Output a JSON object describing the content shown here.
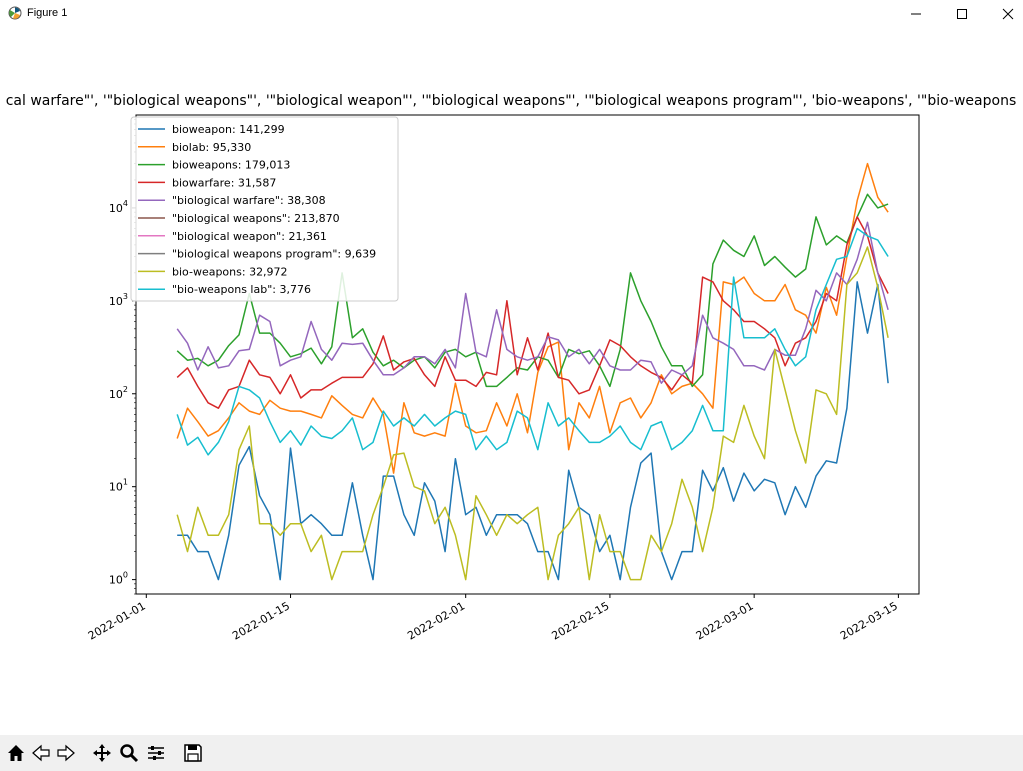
{
  "window": {
    "title": "Figure 1"
  },
  "toolbar": {
    "buttons": [
      {
        "name": "home-button",
        "icon": "home-icon"
      },
      {
        "name": "back-button",
        "icon": "arrow-left-icon"
      },
      {
        "name": "forward-button",
        "icon": "arrow-right-icon"
      },
      {
        "name": "pan-button",
        "icon": "move-icon"
      },
      {
        "name": "zoom-button",
        "icon": "magnifier-icon"
      },
      {
        "name": "configure-button",
        "icon": "sliders-icon"
      },
      {
        "name": "save-button",
        "icon": "floppy-disk-icon"
      }
    ]
  },
  "chart_data": {
    "type": "line",
    "title": "cal warfare\"', '\"biological weapons\"', '\"biological weapon\"', '\"biological weapons\"', '\"biological weapons program\"', 'bio-weapons', '\"bio-weapons",
    "xlabel": "",
    "ylabel": "",
    "y_scale": "log",
    "ylim": [
      0.7,
      100000
    ],
    "xlim": [
      "2021-12-31",
      "2022-03-17"
    ],
    "x_start": "2022-01-04",
    "x_end": "2022-03-13",
    "x_ticks": [
      "2022-01-01",
      "2022-01-15",
      "2022-02-01",
      "2022-02-15",
      "2022-03-01",
      "2022-03-15"
    ],
    "y_ticks": [
      {
        "value": 1,
        "base": "10",
        "exp": "0"
      },
      {
        "value": 10,
        "base": "10",
        "exp": "1"
      },
      {
        "value": 100,
        "base": "10",
        "exp": "2"
      },
      {
        "value": 1000,
        "base": "10",
        "exp": "3"
      },
      {
        "value": 10000,
        "base": "10",
        "exp": "4"
      }
    ],
    "legend_position": "upper-left",
    "grid": false,
    "series": [
      {
        "name": "bioweapon: 141,299",
        "color": "#1f77b4",
        "values": [
          3,
          3,
          2,
          2,
          1,
          3,
          17,
          27,
          8,
          5,
          1,
          26,
          4,
          5,
          4,
          3,
          3,
          11,
          3,
          1,
          13,
          13,
          5,
          3,
          11,
          7,
          2,
          20,
          5,
          6,
          3,
          5,
          5,
          5,
          4,
          2,
          2,
          1,
          15,
          6,
          5,
          2,
          3,
          1,
          6,
          18,
          23,
          2,
          1,
          2,
          2,
          15,
          9,
          16,
          7,
          14,
          9,
          12,
          11,
          5,
          10,
          6,
          13,
          19,
          18,
          70,
          1600,
          450,
          1500,
          130
        ]
      },
      {
        "name": "biolab: 95,330",
        "color": "#ff7f0e",
        "values": [
          33,
          70,
          50,
          35,
          40,
          55,
          80,
          65,
          60,
          85,
          70,
          65,
          65,
          60,
          55,
          95,
          75,
          60,
          55,
          90,
          60,
          14,
          80,
          38,
          35,
          38,
          35,
          130,
          45,
          38,
          40,
          80,
          45,
          100,
          38,
          170,
          320,
          360,
          25,
          80,
          55,
          120,
          38,
          80,
          90,
          55,
          80,
          160,
          100,
          120,
          130,
          100,
          70,
          1600,
          1500,
          1800,
          1200,
          1000,
          1000,
          1500,
          800,
          700,
          450,
          1400,
          700,
          3000,
          12000,
          30000,
          13000,
          9000
        ]
      },
      {
        "name": "bioweapons: 179,013",
        "color": "#2ca02c",
        "values": [
          290,
          230,
          240,
          200,
          230,
          330,
          430,
          1200,
          450,
          450,
          350,
          250,
          270,
          310,
          210,
          320,
          2000,
          400,
          500,
          280,
          200,
          230,
          190,
          230,
          250,
          190,
          280,
          300,
          250,
          280,
          120,
          120,
          150,
          190,
          180,
          250,
          230,
          150,
          300,
          270,
          290,
          200,
          120,
          300,
          2000,
          1000,
          600,
          320,
          200,
          200,
          120,
          160,
          2500,
          4500,
          3500,
          3000,
          5000,
          2400,
          3000,
          2300,
          1800,
          2200,
          8000,
          4000,
          5000,
          4200,
          8000,
          14000,
          10000,
          11000
        ]
      },
      {
        "name": "biowarfare: 31,587",
        "color": "#d62728",
        "values": [
          150,
          190,
          120,
          80,
          70,
          110,
          120,
          230,
          160,
          150,
          100,
          160,
          90,
          110,
          110,
          130,
          150,
          150,
          150,
          210,
          420,
          180,
          220,
          240,
          160,
          120,
          250,
          140,
          140,
          120,
          170,
          160,
          1000,
          160,
          400,
          180,
          450,
          150,
          140,
          100,
          110,
          200,
          380,
          330,
          250,
          200,
          170,
          150,
          110,
          160,
          130,
          1800,
          1600,
          1000,
          800,
          600,
          600,
          500,
          400,
          200,
          350,
          400,
          600,
          1200,
          1000,
          4000,
          8000,
          5000,
          2000,
          1200
        ]
      },
      {
        "name": "\"biological warfare\": 38,308",
        "color": "#9467bd",
        "values": [
          500,
          350,
          180,
          320,
          190,
          200,
          290,
          300,
          700,
          600,
          200,
          230,
          250,
          600,
          300,
          230,
          350,
          340,
          350,
          230,
          160,
          160,
          190,
          250,
          250,
          210,
          300,
          190,
          1200,
          280,
          250,
          800,
          300,
          250,
          230,
          250,
          410,
          380,
          250,
          300,
          210,
          300,
          200,
          180,
          180,
          230,
          220,
          130,
          180,
          160,
          200,
          700,
          400,
          350,
          300,
          200,
          200,
          180,
          300,
          260,
          260,
          500,
          1300,
          1000,
          2000,
          1500,
          2800,
          7000,
          2000,
          800
        ]
      },
      {
        "name": "\"biological weapons\": 213,870",
        "color": "#8c564b",
        "values": [
          null,
          null,
          null,
          null,
          null,
          null,
          null,
          null,
          null,
          null,
          null,
          null,
          null,
          null,
          null,
          null,
          null,
          null,
          null,
          null,
          null,
          null,
          null,
          null,
          null,
          null,
          null,
          null,
          null,
          null,
          null,
          null,
          null,
          null,
          null,
          null,
          null,
          null,
          null,
          null,
          null,
          null,
          null,
          null,
          null,
          null,
          null,
          null,
          null,
          null,
          null,
          null,
          null,
          null,
          null,
          null,
          null,
          null,
          null,
          null,
          null,
          null,
          null,
          null,
          null,
          null,
          null,
          null,
          null,
          null
        ]
      },
      {
        "name": "\"biological weapon\": 21,361",
        "color": "#e377c2",
        "values": [
          null,
          null,
          null,
          null,
          null,
          null,
          null,
          null,
          null,
          null,
          null,
          null,
          null,
          null,
          null,
          null,
          null,
          null,
          null,
          null,
          null,
          null,
          null,
          null,
          null,
          null,
          null,
          null,
          null,
          null,
          null,
          null,
          null,
          null,
          null,
          null,
          null,
          null,
          null,
          null,
          null,
          null,
          null,
          null,
          null,
          null,
          null,
          null,
          null,
          null,
          null,
          null,
          null,
          null,
          null,
          null,
          null,
          null,
          null,
          null,
          null,
          null,
          null,
          null,
          null,
          null,
          null,
          null,
          null,
          null
        ]
      },
      {
        "name": "\"biological weapons program\": 9,639",
        "color": "#7f7f7f",
        "values": [
          null,
          null,
          null,
          null,
          null,
          null,
          null,
          null,
          null,
          null,
          null,
          null,
          null,
          null,
          null,
          null,
          null,
          null,
          null,
          null,
          null,
          null,
          null,
          null,
          null,
          null,
          null,
          null,
          null,
          null,
          null,
          null,
          null,
          null,
          null,
          null,
          null,
          null,
          null,
          null,
          null,
          null,
          null,
          null,
          null,
          null,
          null,
          null,
          null,
          null,
          null,
          null,
          null,
          null,
          null,
          null,
          null,
          null,
          null,
          null,
          null,
          null,
          null,
          null,
          null,
          null,
          null,
          null,
          null,
          null
        ]
      },
      {
        "name": "bio-weapons: 32,972",
        "color": "#bcbd22",
        "values": [
          5,
          2,
          6,
          3,
          3,
          5,
          25,
          45,
          4,
          4,
          3,
          4,
          4,
          2,
          3,
          1,
          2,
          2,
          2,
          5,
          10,
          22,
          23,
          10,
          9,
          4,
          6,
          3,
          1,
          8,
          5,
          3,
          5,
          4,
          5,
          6,
          1,
          3,
          4,
          6,
          1,
          5,
          2,
          2,
          1,
          1,
          3,
          2,
          4,
          12,
          6,
          2,
          6,
          35,
          30,
          75,
          35,
          20,
          300,
          110,
          40,
          18,
          110,
          100,
          60,
          1500,
          2000,
          3800,
          1400,
          400
        ]
      },
      {
        "name": "\"bio-weapons lab\": 3,776",
        "color": "#17becf",
        "values": [
          60,
          28,
          34,
          22,
          30,
          50,
          120,
          110,
          90,
          50,
          30,
          40,
          28,
          45,
          35,
          33,
          40,
          55,
          25,
          30,
          65,
          45,
          55,
          45,
          60,
          45,
          55,
          65,
          60,
          25,
          35,
          25,
          30,
          65,
          55,
          25,
          80,
          45,
          55,
          40,
          30,
          30,
          35,
          45,
          30,
          25,
          45,
          50,
          25,
          30,
          40,
          75,
          40,
          40,
          1800,
          400,
          400,
          400,
          500,
          300,
          200,
          250,
          800,
          1500,
          2800,
          3000,
          6000,
          5000,
          4500,
          3000
        ]
      }
    ]
  }
}
